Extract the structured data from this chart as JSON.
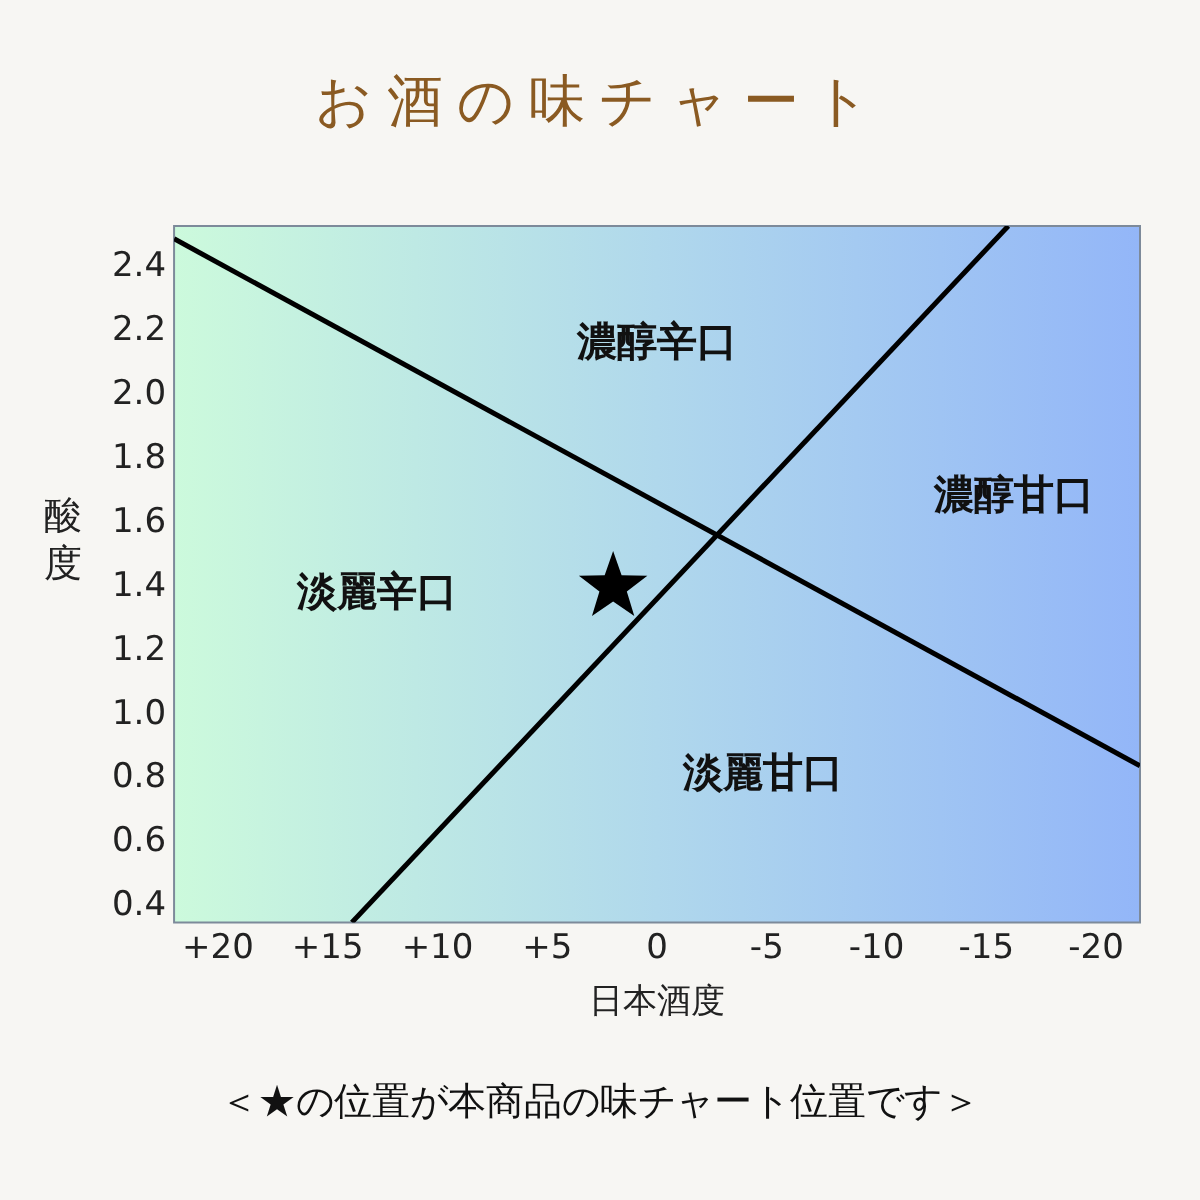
{
  "chart_data": {
    "type": "line",
    "title": "お酒の味チャート",
    "xlabel": "日本酒度",
    "ylabel": "酸度",
    "xlim": [
      22,
      -22
    ],
    "ylim": [
      0.35,
      2.53
    ],
    "xticks": [
      {
        "value": 20,
        "label": "+20"
      },
      {
        "value": 15,
        "label": "+15"
      },
      {
        "value": 10,
        "label": "+10"
      },
      {
        "value": 5,
        "label": "+5"
      },
      0,
      -5,
      -10,
      -15,
      -20
    ],
    "yticks": [
      0.4,
      0.6,
      0.8,
      {
        "value": 1,
        "label": "1.0"
      },
      1.2,
      1.4,
      1.6,
      1.8,
      {
        "value": 2,
        "label": "2.0"
      },
      2.2,
      2.4
    ],
    "legend": false,
    "marker": "none",
    "line_style": "solid",
    "series": [
      {
        "type": "line",
        "color": "#000000",
        "x": [
          22,
          -22
        ],
        "values": [
          2.49,
          0.84
        ]
      },
      {
        "type": "line",
        "color": "#000000",
        "x": [
          13.9,
          -16
        ],
        "values": [
          0.35,
          2.53
        ]
      },
      {
        "type": "scatter",
        "color": "#000000",
        "marker": "star",
        "x": [
          2
        ],
        "values": [
          1.4
        ]
      }
    ],
    "annotations": [
      "濃醇辛口",
      "濃醇甘口",
      "淡麗辛口",
      "淡麗甘口",
      "＜★の位置が本商品の味チャート位置です＞"
    ]
  }
}
